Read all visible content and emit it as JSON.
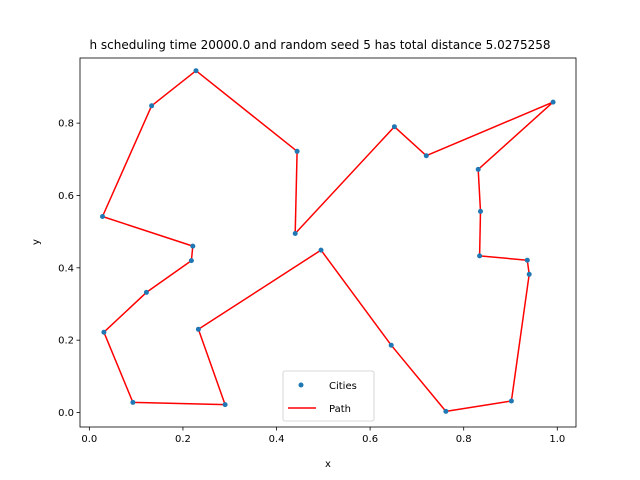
{
  "chart_data": {
    "type": "line",
    "title": "h scheduling time 20000.0 and random seed 5 has total distance 5.0275258",
    "xlabel": "x",
    "ylabel": "y",
    "xlim": [
      -0.02,
      1.04
    ],
    "ylim": [
      -0.04,
      0.98
    ],
    "xticks": [
      0.0,
      0.2,
      0.4,
      0.6,
      0.8,
      1.0
    ],
    "xtick_labels": [
      "0.0",
      "0.2",
      "0.4",
      "0.6",
      "0.8",
      "1.0"
    ],
    "yticks": [
      0.0,
      0.2,
      0.4,
      0.6,
      0.8
    ],
    "ytick_labels": [
      "0.0",
      "0.2",
      "0.4",
      "0.6",
      "0.8"
    ],
    "grid": false,
    "legend_position": "lower-center",
    "series": [
      {
        "name": "Cities",
        "style": "points",
        "color": "#1f77b4",
        "x": [
          0.228,
          0.133,
          0.028,
          0.221,
          0.218,
          0.122,
          0.031,
          0.093,
          0.29,
          0.233,
          0.495,
          0.645,
          0.762,
          0.902,
          0.94,
          0.936,
          0.834,
          0.836,
          0.831,
          0.991,
          0.72,
          0.652,
          0.44,
          0.444
        ],
        "y": [
          0.945,
          0.848,
          0.542,
          0.46,
          0.42,
          0.332,
          0.222,
          0.028,
          0.022,
          0.23,
          0.449,
          0.186,
          0.003,
          0.032,
          0.382,
          0.421,
          0.433,
          0.556,
          0.672,
          0.858,
          0.71,
          0.79,
          0.495,
          0.722
        ]
      },
      {
        "name": "Path",
        "style": "line",
        "color": "#ff0000",
        "x": [
          0.228,
          0.133,
          0.028,
          0.221,
          0.218,
          0.122,
          0.031,
          0.093,
          0.29,
          0.233,
          0.495,
          0.645,
          0.762,
          0.902,
          0.94,
          0.936,
          0.834,
          0.836,
          0.831,
          0.991,
          0.72,
          0.652,
          0.44,
          0.444,
          0.228
        ],
        "y": [
          0.945,
          0.848,
          0.542,
          0.46,
          0.42,
          0.332,
          0.222,
          0.028,
          0.022,
          0.23,
          0.449,
          0.186,
          0.003,
          0.032,
          0.382,
          0.421,
          0.433,
          0.556,
          0.672,
          0.858,
          0.71,
          0.79,
          0.495,
          0.722,
          0.945
        ]
      }
    ]
  }
}
